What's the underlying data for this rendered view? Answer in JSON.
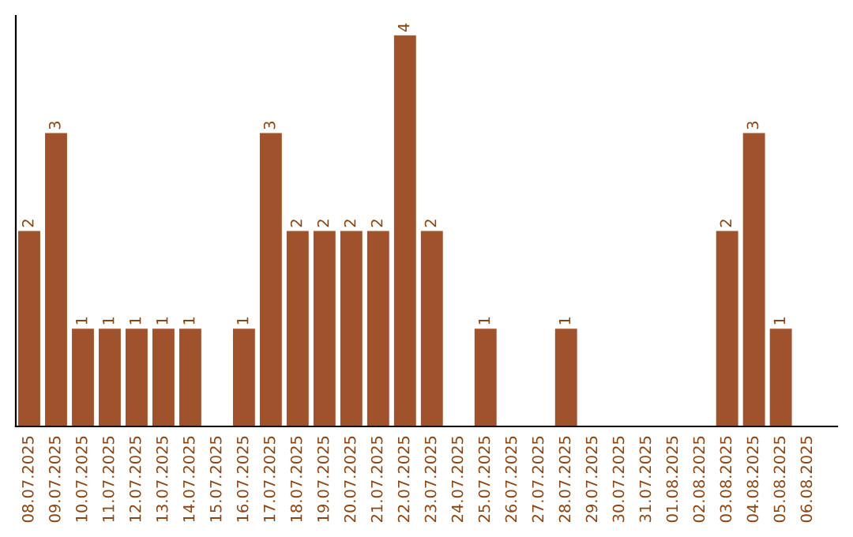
{
  "chart_data": {
    "type": "bar",
    "categories": [
      "08.07.2025",
      "09.07.2025",
      "10.07.2025",
      "11.07.2025",
      "12.07.2025",
      "13.07.2025",
      "14.07.2025",
      "15.07.2025",
      "16.07.2025",
      "17.07.2025",
      "18.07.2025",
      "19.07.2025",
      "20.07.2025",
      "21.07.2025",
      "22.07.2025",
      "23.07.2025",
      "24.07.2025",
      "25.07.2025",
      "26.07.2025",
      "27.07.2025",
      "28.07.2025",
      "29.07.2025",
      "30.07.2025",
      "31.07.2025",
      "01.08.2025",
      "02.08.2025",
      "03.08.2025",
      "04.08.2025",
      "05.08.2025",
      "06.08.2025"
    ],
    "values": [
      2,
      3,
      1,
      1,
      1,
      1,
      1,
      0,
      1,
      3,
      2,
      2,
      2,
      2,
      4,
      2,
      0,
      1,
      0,
      0,
      1,
      0,
      0,
      0,
      0,
      0,
      2,
      3,
      1,
      0
    ],
    "value_labels": [
      "2",
      "3",
      "1",
      "1",
      "1",
      "1",
      "1",
      null,
      "1",
      "3",
      "2",
      "2",
      "2",
      "2",
      "4",
      "2",
      null,
      "1",
      null,
      null,
      "1",
      null,
      null,
      null,
      null,
      null,
      "2",
      "3",
      "1",
      null
    ],
    "color": "#a0522d",
    "ylim": [
      0,
      4.2
    ],
    "tick_labels": "x",
    "grid": false
  }
}
